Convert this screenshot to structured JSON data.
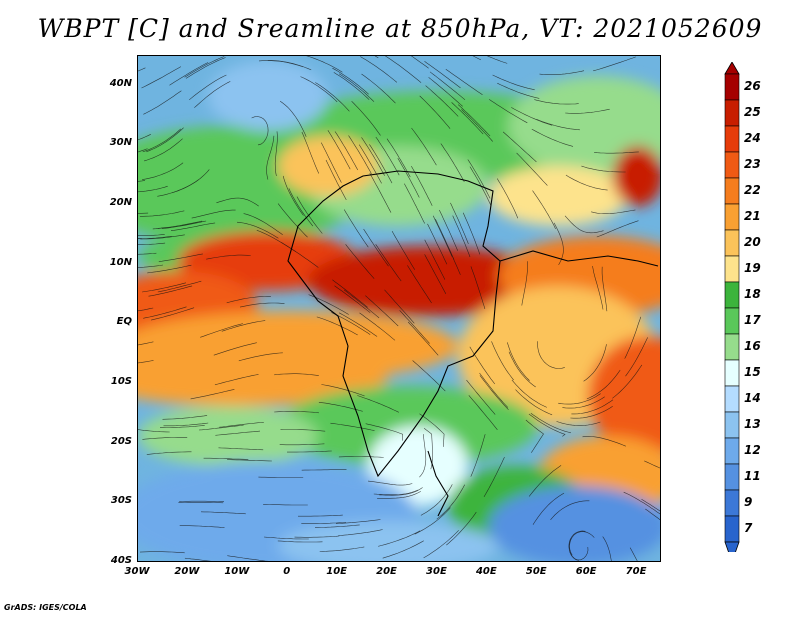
{
  "title": "WBPT [C] and Sreamline at 850hPa, VT: 2021052609",
  "credit": "GrADS: IGES/COLA",
  "map": {
    "lon_range": [
      -30,
      75
    ],
    "lat_range": [
      -40,
      45
    ],
    "lat_ticks": [
      {
        "value": 40,
        "label": "40N"
      },
      {
        "value": 30,
        "label": "30N"
      },
      {
        "value": 20,
        "label": "20N"
      },
      {
        "value": 10,
        "label": "10N"
      },
      {
        "value": 0,
        "label": "EQ"
      },
      {
        "value": -10,
        "label": "10S"
      },
      {
        "value": -20,
        "label": "20S"
      },
      {
        "value": -30,
        "label": "30S"
      },
      {
        "value": -40,
        "label": "40S"
      }
    ],
    "lon_ticks": [
      {
        "value": -30,
        "label": "30W"
      },
      {
        "value": -20,
        "label": "20W"
      },
      {
        "value": -10,
        "label": "10W"
      },
      {
        "value": 0,
        "label": "0"
      },
      {
        "value": 10,
        "label": "10E"
      },
      {
        "value": 20,
        "label": "20E"
      },
      {
        "value": 30,
        "label": "30E"
      },
      {
        "value": 40,
        "label": "40E"
      },
      {
        "value": 50,
        "label": "50E"
      },
      {
        "value": 60,
        "label": "60E"
      },
      {
        "value": 70,
        "label": "70E"
      }
    ]
  },
  "colorbar": {
    "labels": [
      "26",
      "25",
      "24",
      "23",
      "22",
      "21",
      "20",
      "19",
      "18",
      "17",
      "16",
      "15",
      "14",
      "13",
      "12",
      "11",
      "9",
      "7"
    ],
    "colors": [
      "#a50000",
      "#c81e00",
      "#e63c0a",
      "#f05a14",
      "#f57d1e",
      "#f9a032",
      "#fbc35a",
      "#fde38c",
      "#3cb43c",
      "#5ac85a",
      "#96dc8c",
      "#e6ffff",
      "#b4dcff",
      "#8cc3f0",
      "#6eaaeb",
      "#5591e1",
      "#3c78d7",
      "#2864cd"
    ]
  }
}
